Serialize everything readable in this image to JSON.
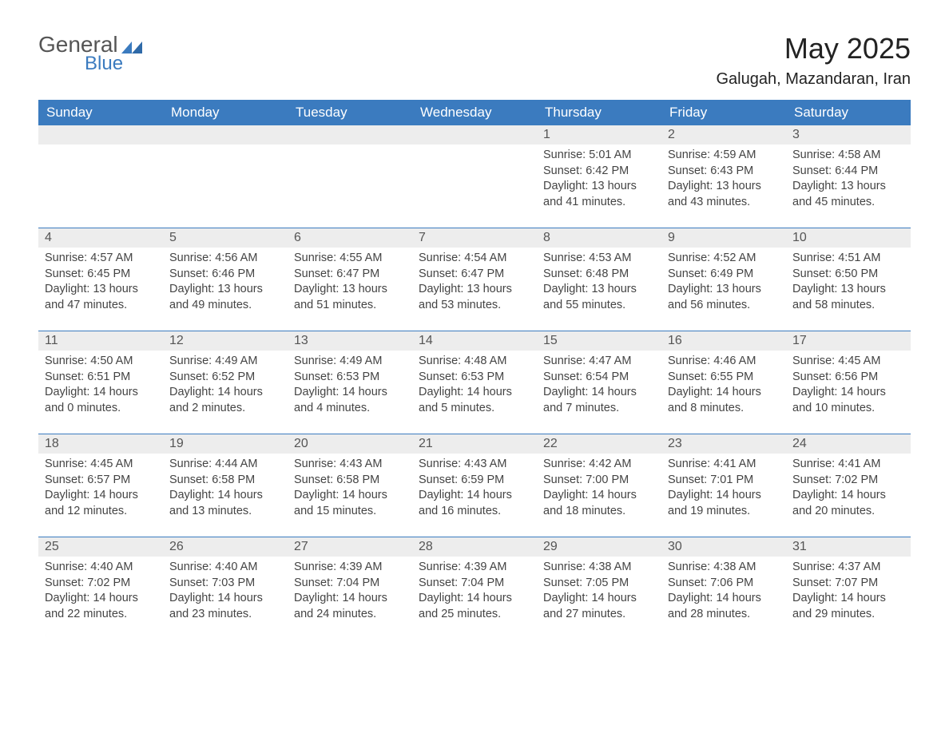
{
  "logo": {
    "general": "General",
    "blue": "Blue",
    "flag_color": "#3b7bbf"
  },
  "title": "May 2025",
  "location": "Galugah, Mazandaran, Iran",
  "colors": {
    "header_bg": "#3b7bbf",
    "header_text": "#ffffff",
    "daynum_bg": "#ededed",
    "daynum_text": "#555555",
    "body_text": "#444444",
    "rule": "#3b7bbf"
  },
  "day_headers": [
    "Sunday",
    "Monday",
    "Tuesday",
    "Wednesday",
    "Thursday",
    "Friday",
    "Saturday"
  ],
  "weeks": [
    [
      {
        "blank": true
      },
      {
        "blank": true
      },
      {
        "blank": true
      },
      {
        "blank": true
      },
      {
        "n": "1",
        "sunrise": "5:01 AM",
        "sunset": "6:42 PM",
        "daylight": "13 hours and 41 minutes."
      },
      {
        "n": "2",
        "sunrise": "4:59 AM",
        "sunset": "6:43 PM",
        "daylight": "13 hours and 43 minutes."
      },
      {
        "n": "3",
        "sunrise": "4:58 AM",
        "sunset": "6:44 PM",
        "daylight": "13 hours and 45 minutes."
      }
    ],
    [
      {
        "n": "4",
        "sunrise": "4:57 AM",
        "sunset": "6:45 PM",
        "daylight": "13 hours and 47 minutes."
      },
      {
        "n": "5",
        "sunrise": "4:56 AM",
        "sunset": "6:46 PM",
        "daylight": "13 hours and 49 minutes."
      },
      {
        "n": "6",
        "sunrise": "4:55 AM",
        "sunset": "6:47 PM",
        "daylight": "13 hours and 51 minutes."
      },
      {
        "n": "7",
        "sunrise": "4:54 AM",
        "sunset": "6:47 PM",
        "daylight": "13 hours and 53 minutes."
      },
      {
        "n": "8",
        "sunrise": "4:53 AM",
        "sunset": "6:48 PM",
        "daylight": "13 hours and 55 minutes."
      },
      {
        "n": "9",
        "sunrise": "4:52 AM",
        "sunset": "6:49 PM",
        "daylight": "13 hours and 56 minutes."
      },
      {
        "n": "10",
        "sunrise": "4:51 AM",
        "sunset": "6:50 PM",
        "daylight": "13 hours and 58 minutes."
      }
    ],
    [
      {
        "n": "11",
        "sunrise": "4:50 AM",
        "sunset": "6:51 PM",
        "daylight": "14 hours and 0 minutes."
      },
      {
        "n": "12",
        "sunrise": "4:49 AM",
        "sunset": "6:52 PM",
        "daylight": "14 hours and 2 minutes."
      },
      {
        "n": "13",
        "sunrise": "4:49 AM",
        "sunset": "6:53 PM",
        "daylight": "14 hours and 4 minutes."
      },
      {
        "n": "14",
        "sunrise": "4:48 AM",
        "sunset": "6:53 PM",
        "daylight": "14 hours and 5 minutes."
      },
      {
        "n": "15",
        "sunrise": "4:47 AM",
        "sunset": "6:54 PM",
        "daylight": "14 hours and 7 minutes."
      },
      {
        "n": "16",
        "sunrise": "4:46 AM",
        "sunset": "6:55 PM",
        "daylight": "14 hours and 8 minutes."
      },
      {
        "n": "17",
        "sunrise": "4:45 AM",
        "sunset": "6:56 PM",
        "daylight": "14 hours and 10 minutes."
      }
    ],
    [
      {
        "n": "18",
        "sunrise": "4:45 AM",
        "sunset": "6:57 PM",
        "daylight": "14 hours and 12 minutes."
      },
      {
        "n": "19",
        "sunrise": "4:44 AM",
        "sunset": "6:58 PM",
        "daylight": "14 hours and 13 minutes."
      },
      {
        "n": "20",
        "sunrise": "4:43 AM",
        "sunset": "6:58 PM",
        "daylight": "14 hours and 15 minutes."
      },
      {
        "n": "21",
        "sunrise": "4:43 AM",
        "sunset": "6:59 PM",
        "daylight": "14 hours and 16 minutes."
      },
      {
        "n": "22",
        "sunrise": "4:42 AM",
        "sunset": "7:00 PM",
        "daylight": "14 hours and 18 minutes."
      },
      {
        "n": "23",
        "sunrise": "4:41 AM",
        "sunset": "7:01 PM",
        "daylight": "14 hours and 19 minutes."
      },
      {
        "n": "24",
        "sunrise": "4:41 AM",
        "sunset": "7:02 PM",
        "daylight": "14 hours and 20 minutes."
      }
    ],
    [
      {
        "n": "25",
        "sunrise": "4:40 AM",
        "sunset": "7:02 PM",
        "daylight": "14 hours and 22 minutes."
      },
      {
        "n": "26",
        "sunrise": "4:40 AM",
        "sunset": "7:03 PM",
        "daylight": "14 hours and 23 minutes."
      },
      {
        "n": "27",
        "sunrise": "4:39 AM",
        "sunset": "7:04 PM",
        "daylight": "14 hours and 24 minutes."
      },
      {
        "n": "28",
        "sunrise": "4:39 AM",
        "sunset": "7:04 PM",
        "daylight": "14 hours and 25 minutes."
      },
      {
        "n": "29",
        "sunrise": "4:38 AM",
        "sunset": "7:05 PM",
        "daylight": "14 hours and 27 minutes."
      },
      {
        "n": "30",
        "sunrise": "4:38 AM",
        "sunset": "7:06 PM",
        "daylight": "14 hours and 28 minutes."
      },
      {
        "n": "31",
        "sunrise": "4:37 AM",
        "sunset": "7:07 PM",
        "daylight": "14 hours and 29 minutes."
      }
    ]
  ],
  "labels": {
    "sunrise": "Sunrise:",
    "sunset": "Sunset:",
    "daylight": "Daylight:"
  }
}
